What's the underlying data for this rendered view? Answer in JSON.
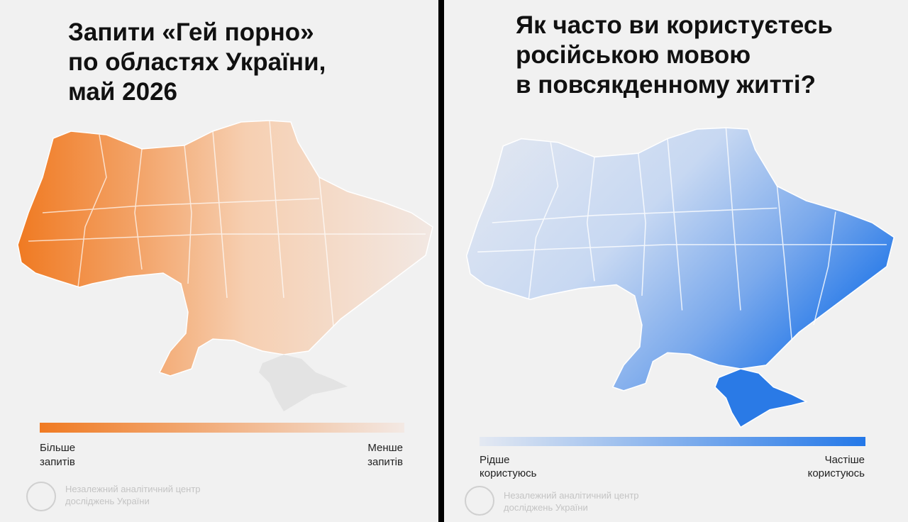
{
  "left": {
    "title": [
      "Запити «Гей порно»",
      "по областях України,",
      "май 2026"
    ],
    "legend": {
      "start": [
        "Більше",
        "запитів"
      ],
      "end": [
        "Менше",
        "запитів"
      ]
    },
    "source": [
      "Незалежний аналітичний центр",
      "досліджень України"
    ]
  },
  "right": {
    "title": [
      "Як часто ви користуєтесь",
      "російською мовою",
      "в повсякденному житті?"
    ],
    "legend": {
      "start": [
        "Рідше",
        "користуюсь"
      ],
      "end": [
        "Частіше",
        "користуюсь"
      ]
    },
    "source": [
      "Незалежний аналітичний центр",
      "досліджень України"
    ]
  }
}
